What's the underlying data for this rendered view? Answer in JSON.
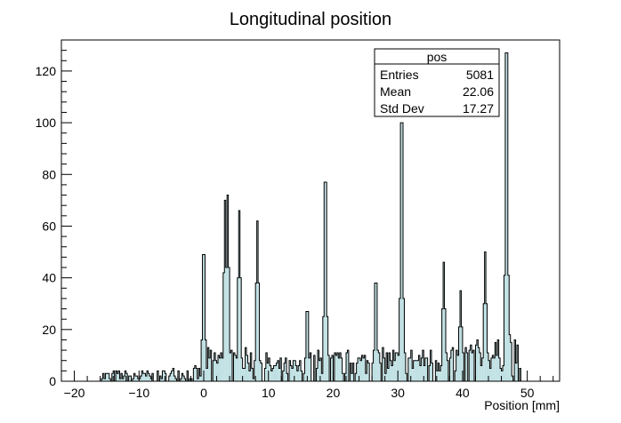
{
  "chart_data": {
    "type": "bar",
    "title": "Longitudinal position",
    "xlabel": "Position [mm]",
    "ylabel": "",
    "xlim": [
      -22,
      55
    ],
    "ylim": [
      0,
      132
    ],
    "x_ticks": [
      -20,
      -10,
      0,
      10,
      20,
      30,
      40,
      50
    ],
    "y_ticks": [
      0,
      20,
      40,
      60,
      80,
      100,
      120
    ],
    "bin_width": 0.2,
    "grid": false,
    "legend": "none",
    "fill_color": "#bfe0e3",
    "line_color": "#000000",
    "stats_box": {
      "name": "pos",
      "rows": [
        {
          "label": "Entries",
          "value": "5081"
        },
        {
          "label": "Mean",
          "value": "22.06"
        },
        {
          "label": "Std Dev",
          "value": "17.27"
        }
      ]
    },
    "baseline_regions": [
      {
        "from": -16,
        "to": -5,
        "level": 2,
        "spread": 2
      },
      {
        "from": -5,
        "to": 0,
        "level": 3,
        "spread": 3
      },
      {
        "from": 0,
        "to": 10,
        "level": 8,
        "spread": 5
      },
      {
        "from": 10,
        "to": 16,
        "level": 5,
        "spread": 4
      },
      {
        "from": 16,
        "to": 26,
        "level": 7,
        "spread": 5
      },
      {
        "from": 26,
        "to": 40,
        "level": 8,
        "spread": 5
      },
      {
        "from": 40,
        "to": 49,
        "level": 10,
        "spread": 6
      }
    ],
    "peaks": [
      {
        "x": 0.0,
        "y": 49
      },
      {
        "x": 3.3,
        "y": 70
      },
      {
        "x": 3.7,
        "y": 72
      },
      {
        "x": 5.5,
        "y": 66
      },
      {
        "x": 8.3,
        "y": 62
      },
      {
        "x": 16.0,
        "y": 27
      },
      {
        "x": 18.8,
        "y": 77
      },
      {
        "x": 26.6,
        "y": 38
      },
      {
        "x": 30.6,
        "y": 100
      },
      {
        "x": 37.1,
        "y": 46
      },
      {
        "x": 39.7,
        "y": 35
      },
      {
        "x": 43.5,
        "y": 50
      },
      {
        "x": 46.8,
        "y": 127
      },
      {
        "x": 47.3,
        "y": 18
      }
    ]
  }
}
